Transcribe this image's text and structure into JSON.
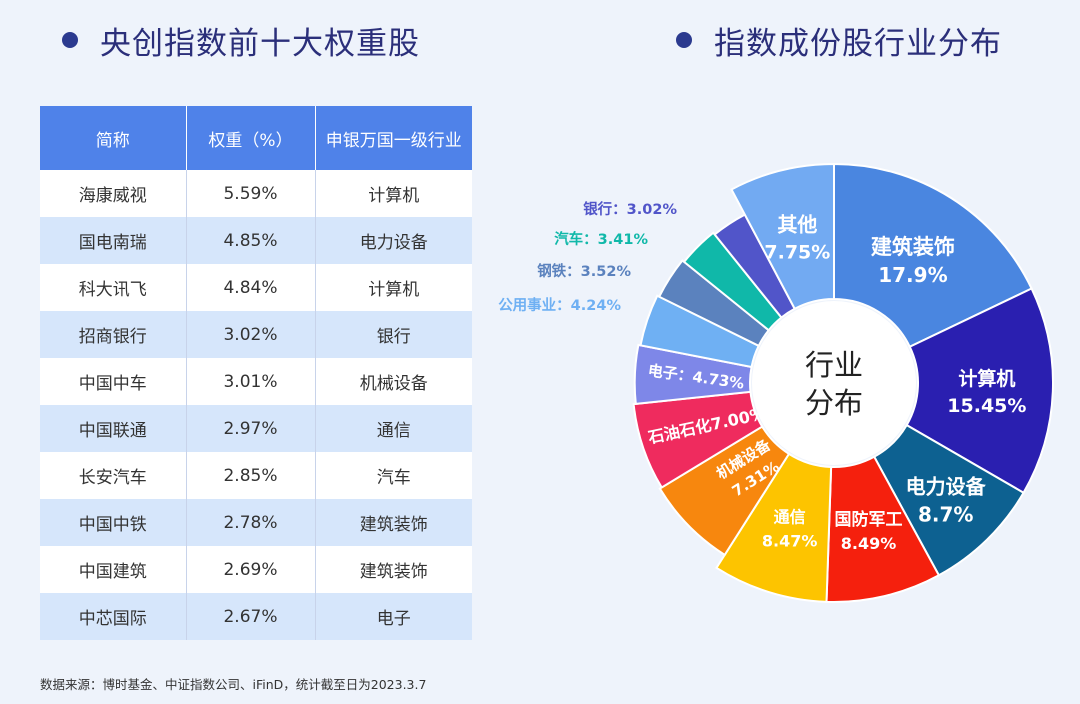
{
  "left_title": "央创指数前十大权重股",
  "right_title": "指数成份股行业分布",
  "table": {
    "headers": [
      "简称",
      "权重（%）",
      "申银万国一级行业"
    ],
    "rows": [
      [
        "海康威视",
        "5.59%",
        "计算机"
      ],
      [
        "国电南瑞",
        "4.85%",
        "电力设备"
      ],
      [
        "科大讯飞",
        "4.84%",
        "计算机"
      ],
      [
        "招商银行",
        "3.02%",
        "银行"
      ],
      [
        "中国中车",
        "3.01%",
        "机械设备"
      ],
      [
        "中国联通",
        "2.97%",
        "通信"
      ],
      [
        "长安汽车",
        "2.85%",
        "汽车"
      ],
      [
        "中国中铁",
        "2.78%",
        "建筑装饰"
      ],
      [
        "中国建筑",
        "2.69%",
        "建筑装饰"
      ],
      [
        "中芯国际",
        "2.67%",
        "电子"
      ]
    ]
  },
  "source_note": "数据来源：博时基金、中证指数公司、iFinD，统计截至日为2023.3.7",
  "chart_data": {
    "type": "pie",
    "center_label": [
      "行业",
      "分布"
    ],
    "slices": [
      {
        "name": "建筑装饰",
        "value": 17.9,
        "label": "17.9%",
        "color": "#4a86e0"
      },
      {
        "name": "计算机",
        "value": 15.45,
        "label": "15.45%",
        "color": "#2a1fb0"
      },
      {
        "name": "电力设备",
        "value": 8.7,
        "label": "8.7%",
        "color": "#0d6191"
      },
      {
        "name": "国防军工",
        "value": 8.49,
        "label": "8.49%",
        "color": "#f5200d"
      },
      {
        "name": "通信",
        "value": 8.47,
        "label": "8.47%",
        "color": "#fdc400"
      },
      {
        "name": "机械设备",
        "value": 7.31,
        "label": "7.31%",
        "color": "#f7870e"
      },
      {
        "name": "石油石化",
        "value": 7.0,
        "label": "7.00%",
        "color": "#ef2b5e"
      },
      {
        "name": "电子",
        "value": 4.73,
        "label": "4.73%",
        "color": "#7e87e8"
      },
      {
        "name": "公用事业",
        "value": 4.24,
        "label": "4.24%",
        "color": "#6fb0f3"
      },
      {
        "name": "钢铁",
        "value": 3.52,
        "label": "3.52%",
        "color": "#5b82be"
      },
      {
        "name": "汽车",
        "value": 3.41,
        "label": "3.41%",
        "color": "#10b8a9"
      },
      {
        "name": "银行",
        "value": 3.02,
        "label": "3.02%",
        "color": "#5155c9"
      },
      {
        "name": "其他",
        "value": 7.75,
        "label": "7.75%",
        "color": "#72aaf2"
      }
    ]
  }
}
